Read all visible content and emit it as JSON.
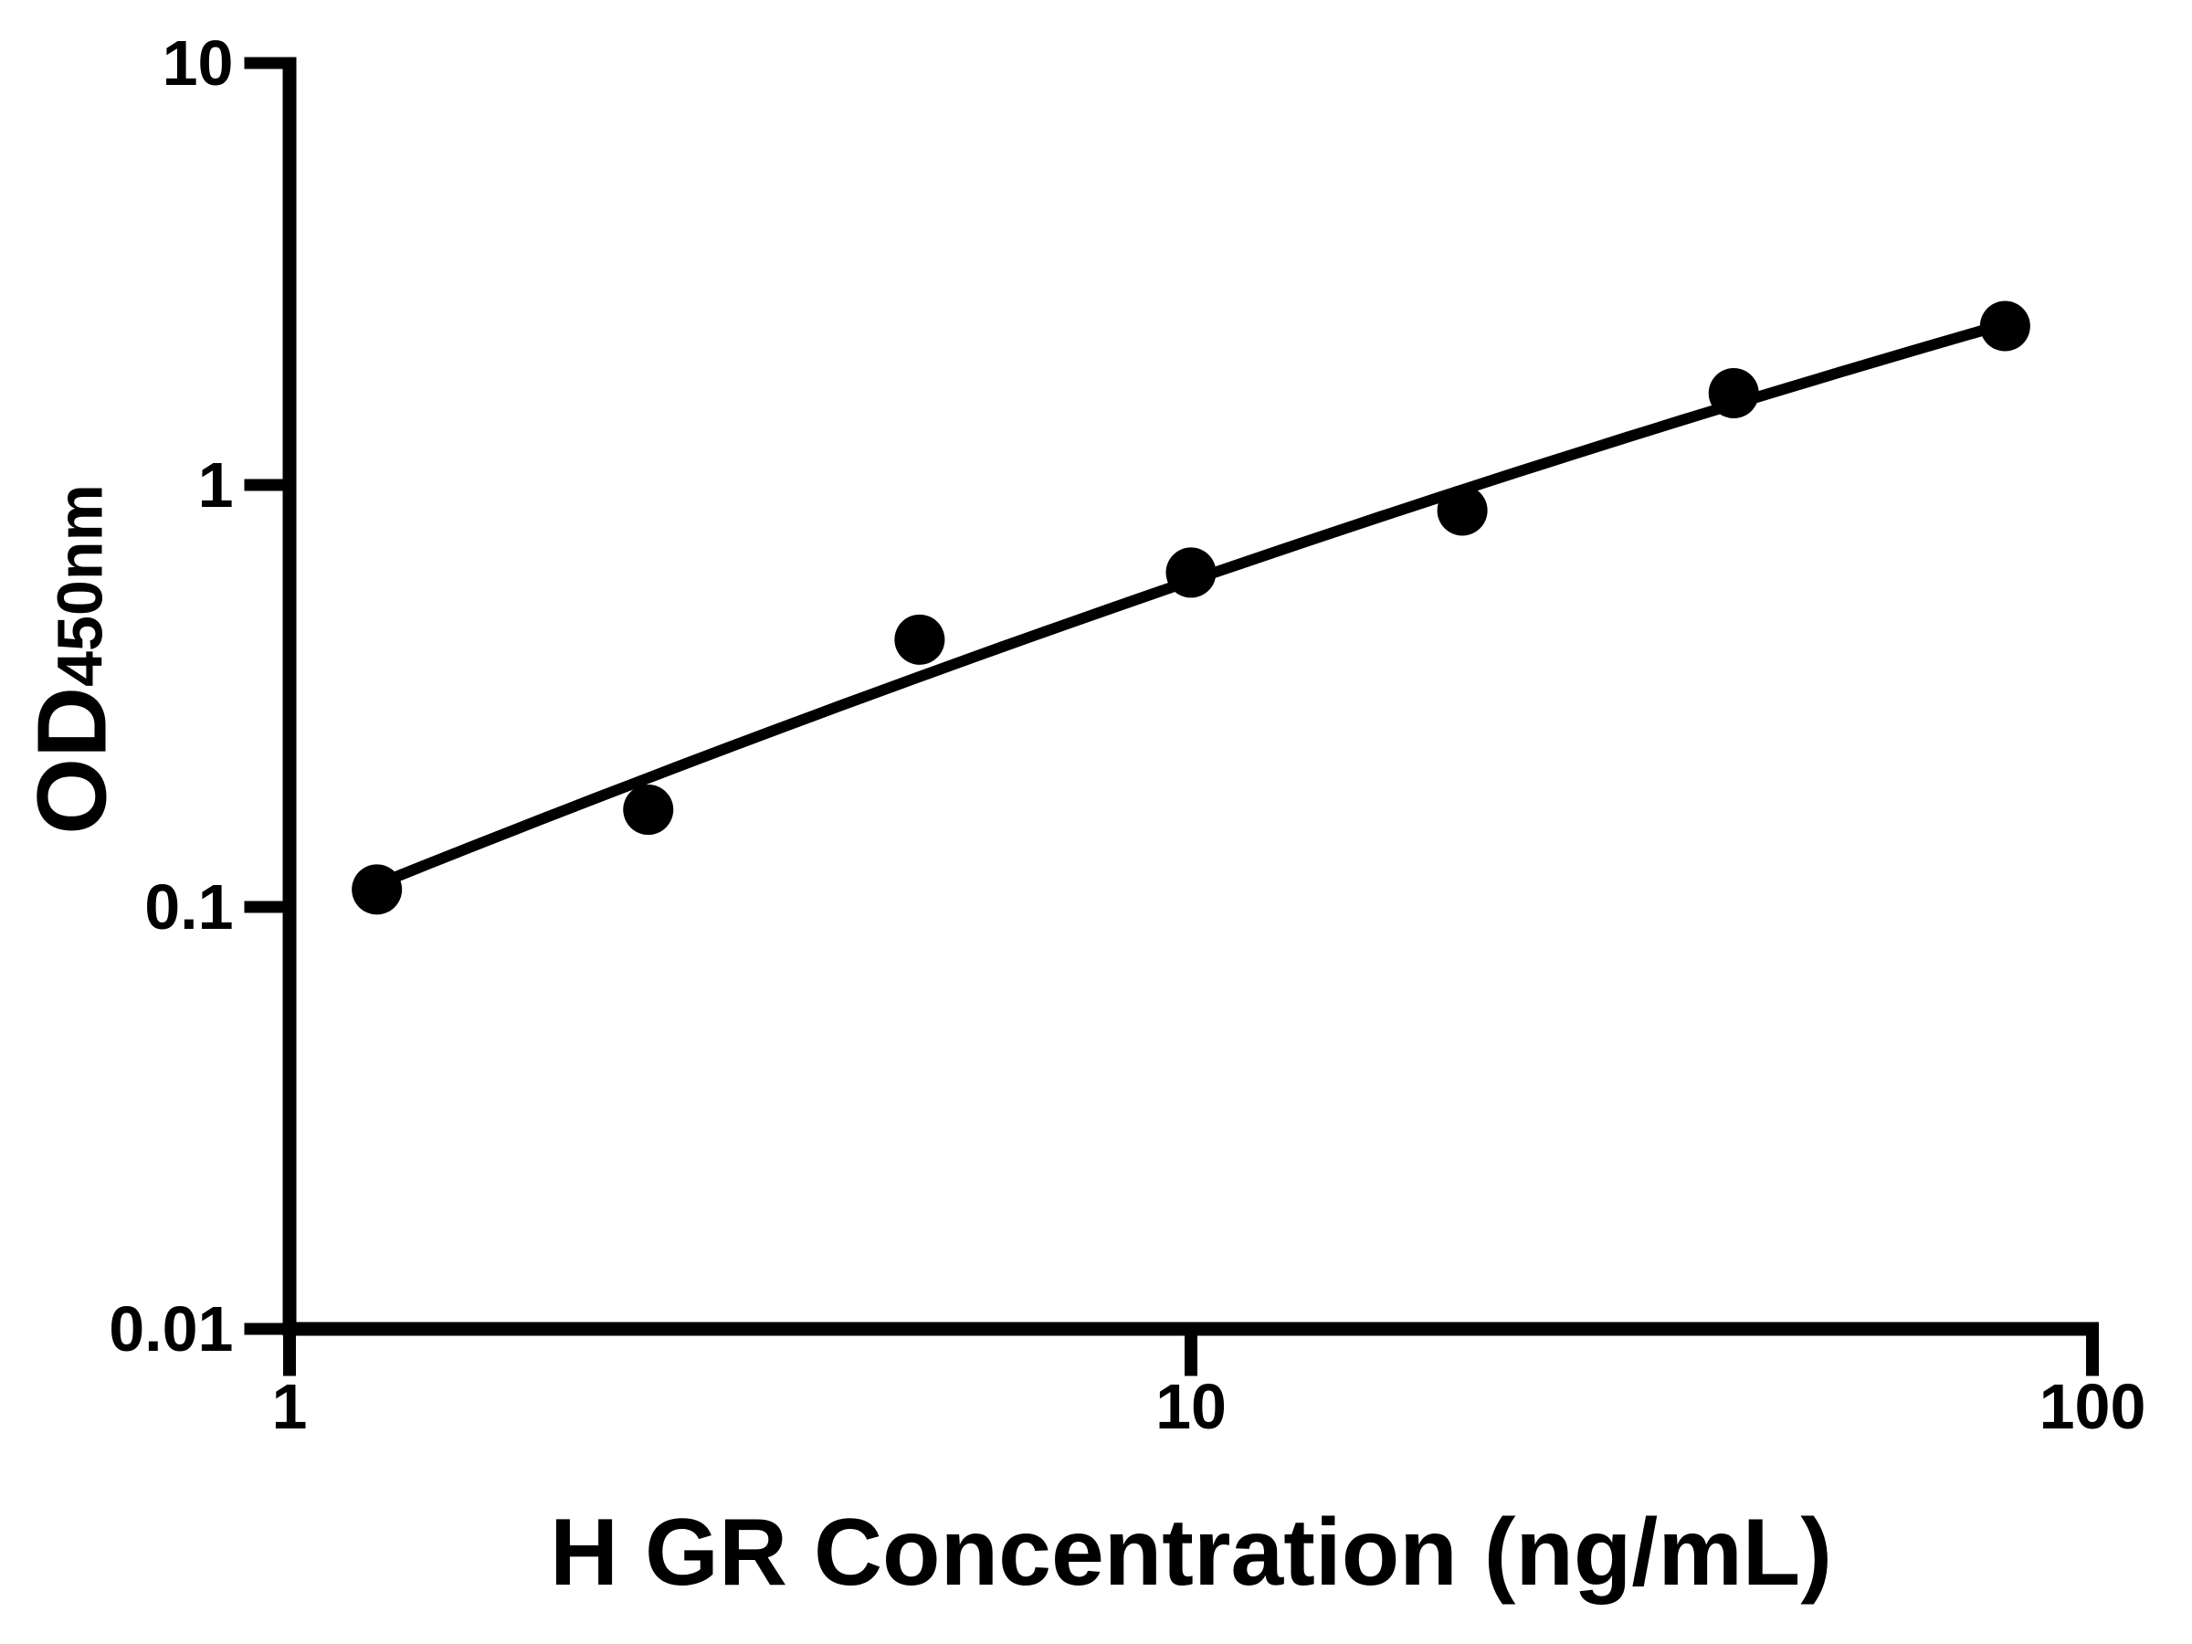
{
  "chart_data": {
    "type": "scatter",
    "title": "",
    "xlabel": "H GR Concentration (ng/mL)",
    "ylabel": "OD450nm",
    "ylabel_main": "OD",
    "ylabel_sub": "450nm",
    "x_scale": "log",
    "y_scale": "log",
    "xlim": [
      1,
      100
    ],
    "ylim": [
      0.01,
      10
    ],
    "grid": false,
    "legend": false,
    "x_ticks": [
      {
        "value": 1,
        "label": "1"
      },
      {
        "value": 10,
        "label": "10"
      },
      {
        "value": 100,
        "label": "100"
      }
    ],
    "y_ticks": [
      {
        "value": 10,
        "label": "10"
      },
      {
        "value": 1,
        "label": "1"
      },
      {
        "value": 0.1,
        "label": "0.1"
      },
      {
        "value": 0.01,
        "label": "0.01"
      }
    ],
    "series": [
      {
        "name": "standard-curve-points",
        "marker": "circle",
        "color": "#000000",
        "points": [
          {
            "x": 1.25,
            "y": 0.11
          },
          {
            "x": 2.5,
            "y": 0.17
          },
          {
            "x": 5,
            "y": 0.43
          },
          {
            "x": 10,
            "y": 0.62
          },
          {
            "x": 20,
            "y": 0.87
          },
          {
            "x": 40,
            "y": 1.65
          },
          {
            "x": 80,
            "y": 2.38
          }
        ]
      }
    ],
    "trend": {
      "kind": "quadratic-loglog",
      "description": "log10(y) = a + b*(log10(x)-1) + c*(log10(x)-1)^2",
      "a": -0.2267,
      "b": 0.7354,
      "c": -0.0686,
      "x_start": 1.25,
      "x_end": 80,
      "color": "#000000"
    },
    "colors": {
      "ink": "#000000",
      "background": "#ffffff"
    }
  }
}
